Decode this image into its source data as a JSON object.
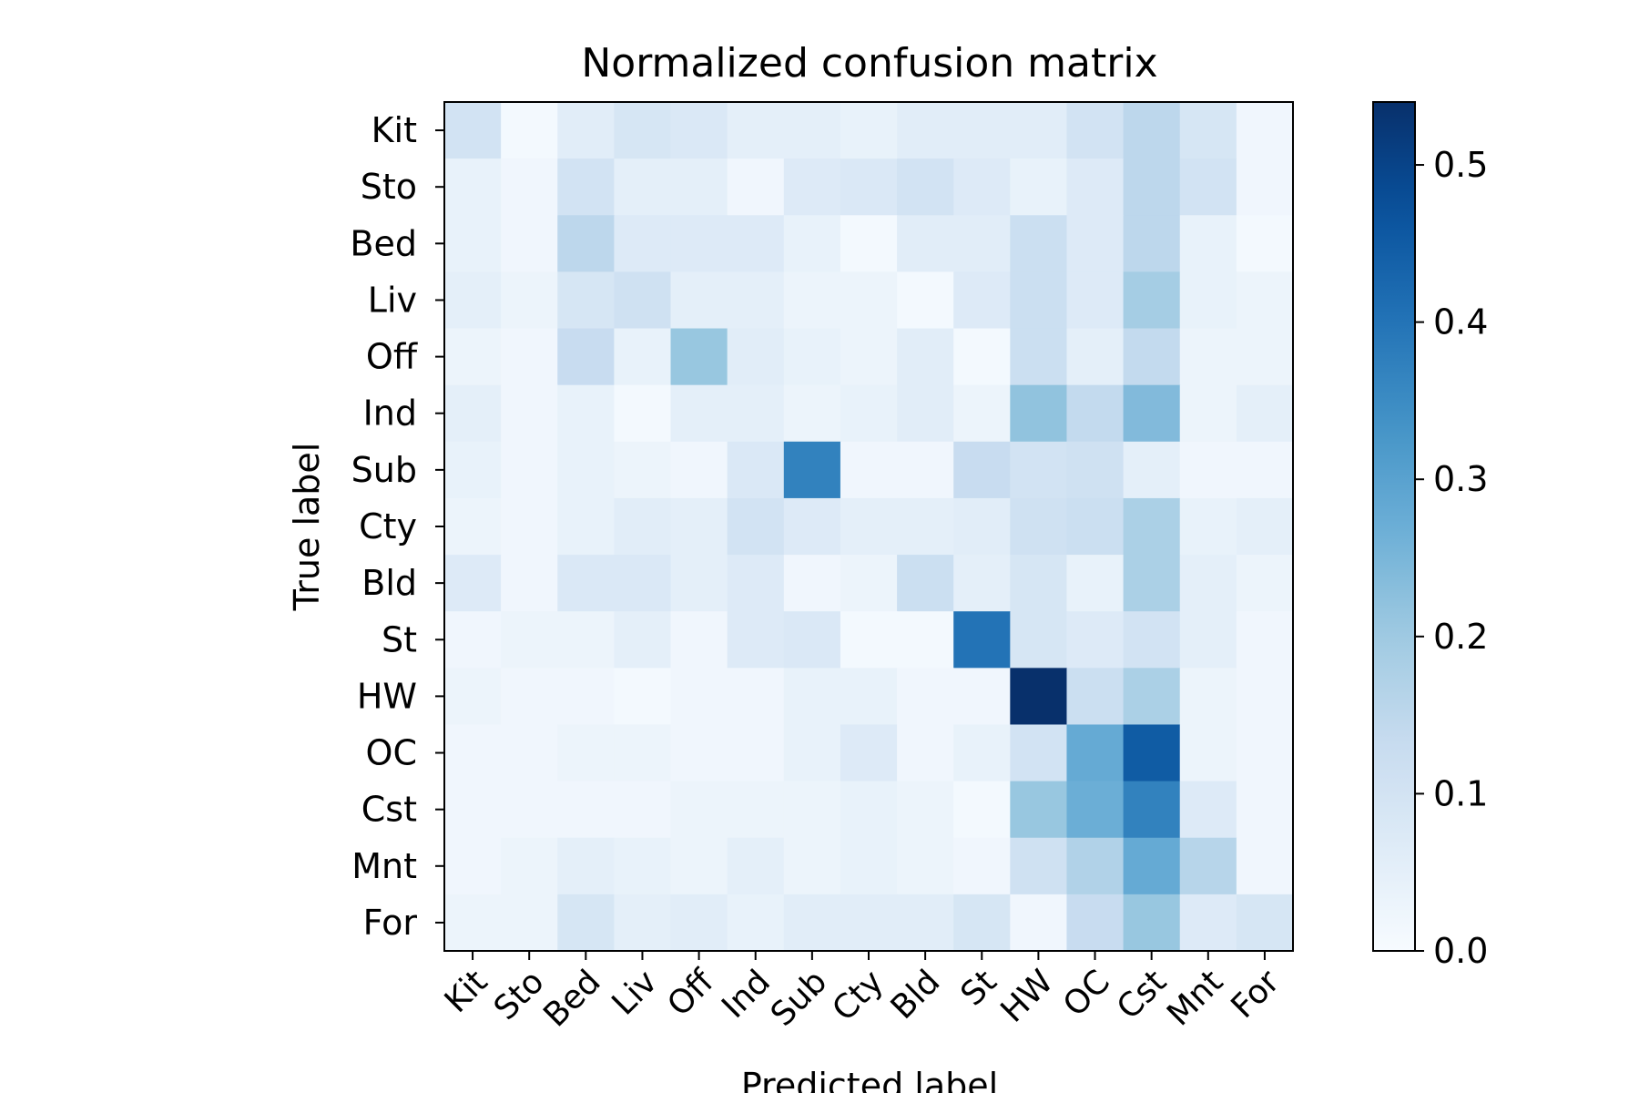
{
  "chart_data": {
    "type": "heatmap",
    "title": "Normalized confusion matrix",
    "xlabel": "Predicted label",
    "ylabel": "True label",
    "row_labels": [
      "Kit",
      "Sto",
      "Bed",
      "Liv",
      "Off",
      "Ind",
      "Sub",
      "Cty",
      "Bld",
      "St",
      "HW",
      "OC",
      "Cst",
      "Mnt",
      "For"
    ],
    "col_labels": [
      "Kit",
      "Sto",
      "Bed",
      "Liv",
      "Off",
      "Ind",
      "Sub",
      "Cty",
      "Bld",
      "St",
      "HW",
      "OC",
      "Cst",
      "Mnt",
      "For"
    ],
    "colormap": "Blues",
    "vmin": 0.0,
    "vmax": 0.54,
    "colorbar_ticks": [
      0.0,
      0.1,
      0.2,
      0.3,
      0.4,
      0.5
    ],
    "colorbar_tick_labels": [
      "0.0",
      "0.1",
      "0.2",
      "0.3",
      "0.4",
      "0.5"
    ],
    "values": [
      [
        0.1,
        0.01,
        0.06,
        0.09,
        0.08,
        0.05,
        0.05,
        0.04,
        0.06,
        0.06,
        0.06,
        0.1,
        0.15,
        0.09,
        0.02
      ],
      [
        0.04,
        0.02,
        0.1,
        0.05,
        0.05,
        0.02,
        0.07,
        0.08,
        0.1,
        0.07,
        0.04,
        0.07,
        0.15,
        0.1,
        0.02
      ],
      [
        0.04,
        0.02,
        0.15,
        0.07,
        0.07,
        0.07,
        0.04,
        0.01,
        0.06,
        0.06,
        0.12,
        0.07,
        0.15,
        0.04,
        0.01
      ],
      [
        0.05,
        0.03,
        0.09,
        0.11,
        0.05,
        0.05,
        0.03,
        0.03,
        0.01,
        0.07,
        0.12,
        0.07,
        0.19,
        0.04,
        0.03
      ],
      [
        0.03,
        0.02,
        0.13,
        0.04,
        0.21,
        0.06,
        0.04,
        0.03,
        0.06,
        0.01,
        0.12,
        0.05,
        0.14,
        0.03,
        0.03
      ],
      [
        0.05,
        0.02,
        0.04,
        0.01,
        0.05,
        0.05,
        0.03,
        0.04,
        0.06,
        0.03,
        0.22,
        0.14,
        0.24,
        0.03,
        0.05
      ],
      [
        0.04,
        0.02,
        0.04,
        0.03,
        0.02,
        0.08,
        0.37,
        0.02,
        0.02,
        0.13,
        0.1,
        0.11,
        0.05,
        0.02,
        0.02
      ],
      [
        0.03,
        0.02,
        0.04,
        0.06,
        0.05,
        0.1,
        0.07,
        0.05,
        0.05,
        0.06,
        0.11,
        0.12,
        0.18,
        0.04,
        0.05
      ],
      [
        0.07,
        0.02,
        0.08,
        0.08,
        0.05,
        0.07,
        0.02,
        0.03,
        0.12,
        0.05,
        0.09,
        0.04,
        0.18,
        0.05,
        0.03
      ],
      [
        0.02,
        0.03,
        0.03,
        0.05,
        0.02,
        0.07,
        0.08,
        0.01,
        0.01,
        0.4,
        0.09,
        0.07,
        0.1,
        0.05,
        0.02
      ],
      [
        0.03,
        0.02,
        0.02,
        0.01,
        0.02,
        0.02,
        0.04,
        0.04,
        0.02,
        0.02,
        0.54,
        0.12,
        0.18,
        0.03,
        0.02
      ],
      [
        0.02,
        0.02,
        0.03,
        0.03,
        0.02,
        0.02,
        0.04,
        0.07,
        0.02,
        0.04,
        0.1,
        0.28,
        0.45,
        0.03,
        0.02
      ],
      [
        0.02,
        0.02,
        0.02,
        0.02,
        0.03,
        0.03,
        0.03,
        0.04,
        0.03,
        0.01,
        0.21,
        0.27,
        0.37,
        0.07,
        0.02
      ],
      [
        0.02,
        0.03,
        0.05,
        0.04,
        0.03,
        0.05,
        0.03,
        0.04,
        0.03,
        0.02,
        0.11,
        0.17,
        0.28,
        0.16,
        0.02
      ],
      [
        0.03,
        0.03,
        0.09,
        0.05,
        0.06,
        0.04,
        0.06,
        0.06,
        0.06,
        0.09,
        0.02,
        0.13,
        0.21,
        0.07,
        0.09
      ]
    ]
  }
}
